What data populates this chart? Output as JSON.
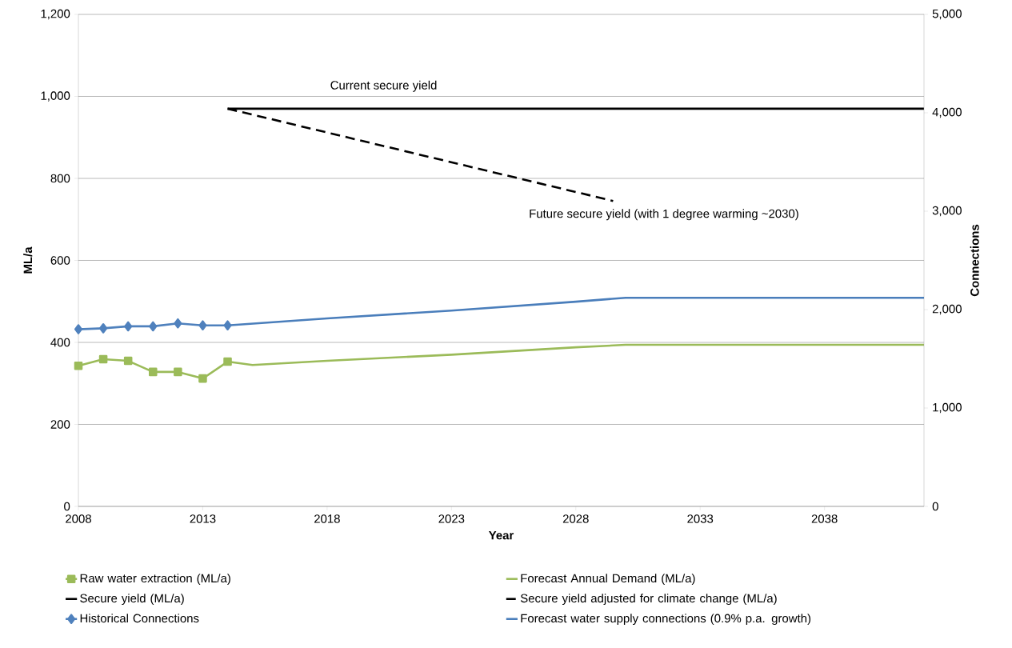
{
  "chart_data": {
    "type": "line",
    "xlabel": "Year",
    "ylabel": "ML/a",
    "y2label": "Connections",
    "xlim": [
      2008,
      2042
    ],
    "xticks": [
      2008,
      2013,
      2018,
      2023,
      2028,
      2033,
      2038
    ],
    "ylim": [
      0,
      1200
    ],
    "yticks": [
      0,
      200,
      400,
      600,
      800,
      {
        "value": 1000,
        "label": "1,000"
      },
      {
        "value": 1200,
        "label": "1,200"
      }
    ],
    "y2lim": [
      0,
      5000
    ],
    "y2ticks": [
      0,
      {
        "value": 1000,
        "label": "1,000"
      },
      {
        "value": 2000,
        "label": "2,000"
      },
      {
        "value": 3000,
        "label": "3,000"
      },
      {
        "value": 4000,
        "label": "4,000"
      },
      {
        "value": 5000,
        "label": "5,000"
      }
    ],
    "grid": "y",
    "legend": "bottom",
    "series": [
      {
        "name": "Raw water extraction (ML/a)",
        "color": "#9bbb59",
        "marker": "square",
        "line_style": "solid",
        "x": [
          2008,
          2009,
          2010,
          2011,
          2012,
          2013,
          2014
        ],
        "values": [
          343,
          359,
          355,
          328,
          328,
          312,
          353
        ]
      },
      {
        "name": "Forecast Annual Demand (ML/a)",
        "color": "#9bbb59",
        "marker": "none",
        "line_style": "solid",
        "x": [
          2014,
          2015,
          2018,
          2023,
          2028,
          2030,
          2042
        ],
        "values": [
          353,
          345,
          355,
          370,
          388,
          394,
          394
        ]
      },
      {
        "name": "Secure yield (ML/a)",
        "color": "#000000",
        "marker": "none",
        "line_style": "solid",
        "x": [
          2014,
          2042
        ],
        "values": [
          970,
          970
        ]
      },
      {
        "name": "Secure yield adjusted for climate change (ML/a)",
        "color": "#000000",
        "marker": "none",
        "line_style": "dashed",
        "x": [
          2014,
          2029.5
        ],
        "values": [
          970,
          745
        ]
      },
      {
        "name": "Historical Connections",
        "color": "#4f81bd",
        "marker": "diamond",
        "line_style": "solid",
        "axis": "y2",
        "x": [
          2008,
          2009,
          2010,
          2011,
          2012,
          2013,
          2014
        ],
        "values": [
          1800,
          1810,
          1830,
          1830,
          1860,
          1840,
          1840
        ]
      },
      {
        "name": "Forecast water supply connections (0.9% p.a. growth)",
        "color": "#4a7ebb",
        "marker": "none",
        "line_style": "solid",
        "axis": "y2",
        "x": [
          2014,
          2018,
          2023,
          2028,
          2030,
          2042
        ],
        "values": [
          1840,
          1910,
          1990,
          2080,
          2120,
          2120
        ]
      }
    ],
    "annotations": [
      "Current secure yield",
      "Future secure yield (with 1 degree warming ~2030)"
    ]
  }
}
